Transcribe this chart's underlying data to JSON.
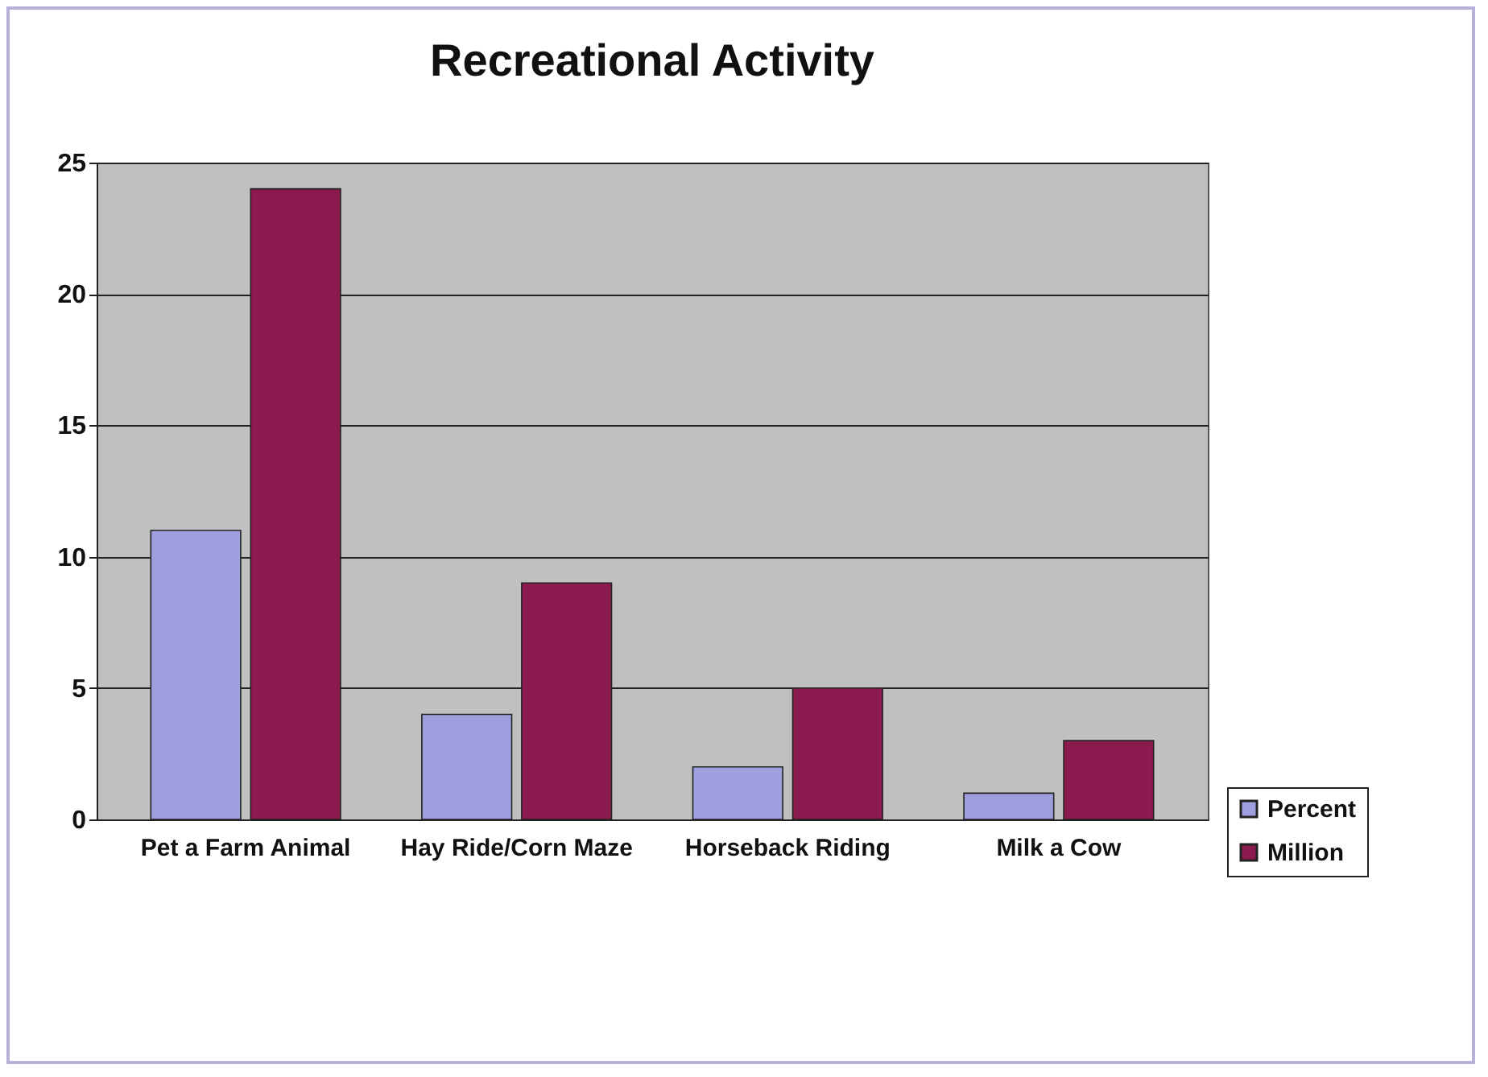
{
  "chart_data": {
    "type": "bar",
    "title": "Recreational Activity",
    "categories": [
      "Pet a Farm Animal",
      "Hay Ride/Corn Maze",
      "Horseback Riding",
      "Milk a Cow"
    ],
    "series": [
      {
        "name": "Percent",
        "color": "#9f9fdf",
        "values": [
          11,
          4,
          2,
          1
        ]
      },
      {
        "name": "Million",
        "color": "#8b1a4f",
        "values": [
          24,
          9,
          5,
          3
        ]
      }
    ],
    "ylim": [
      0,
      25
    ],
    "yticks": [
      0,
      5,
      10,
      15,
      20,
      25
    ],
    "grid": "y",
    "legend": "bottom right"
  }
}
